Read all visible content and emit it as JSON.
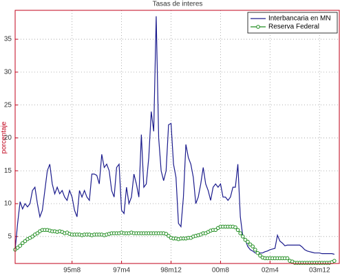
{
  "chart_data": {
    "type": "line",
    "title": "Tasas de interes",
    "y_label": "porcentaje",
    "x": [
      404,
      405,
      406,
      407,
      408,
      409,
      410,
      411,
      412,
      413,
      414,
      415,
      416,
      417,
      418,
      419,
      420,
      421,
      422,
      423,
      424,
      425,
      426,
      427,
      428,
      429,
      430,
      431,
      432,
      433,
      434,
      435,
      436,
      437,
      438,
      439,
      440,
      441,
      442,
      443,
      444,
      445,
      446,
      447,
      448,
      449,
      450,
      451,
      452,
      453,
      454,
      455,
      456,
      457,
      458,
      459,
      460,
      461,
      462,
      463,
      464,
      465,
      466,
      467,
      468,
      469,
      470,
      471,
      472,
      473,
      474,
      475,
      476,
      477,
      478,
      479,
      480,
      481,
      482,
      483,
      484,
      485,
      486,
      487,
      488,
      489,
      490,
      491,
      492,
      493,
      494,
      495,
      496,
      497,
      498,
      499,
      500,
      501,
      502,
      503,
      504,
      505,
      506,
      507,
      508,
      509,
      510,
      511,
      512,
      513,
      514,
      515,
      516,
      517,
      518,
      519,
      520,
      521,
      522,
      523,
      524,
      525,
      526,
      527,
      528,
      529,
      530,
      531,
      532,
      533
    ],
    "series": [
      {
        "name": "Interbancaria en MN",
        "color": "#1a1a8c",
        "marker": false,
        "values": [
          3,
          7,
          10.3,
          9.2,
          10,
          9.5,
          10,
          12,
          12.5,
          10,
          8,
          9,
          12,
          15,
          16,
          13,
          11.5,
          12.5,
          11.5,
          12,
          11,
          10.5,
          12,
          11,
          9,
          8,
          12,
          11,
          12,
          11,
          10.5,
          14.5,
          14.5,
          14.3,
          13,
          17.5,
          15.5,
          16,
          15,
          12,
          11,
          15.5,
          16,
          9,
          8.5,
          12.5,
          10,
          11,
          14.5,
          13,
          11,
          20.5,
          12.5,
          13,
          17,
          24,
          21,
          38.5,
          20,
          15,
          13.5,
          15,
          22,
          22.2,
          16,
          14,
          7,
          6.5,
          11,
          19,
          17,
          16,
          14,
          10,
          11,
          13,
          15.5,
          13,
          12,
          10.5,
          12.5,
          13,
          12.5,
          13,
          11,
          11,
          10.5,
          11,
          12.5,
          12.5,
          16,
          8,
          5,
          4.5,
          3.5,
          3,
          2.8,
          2.5,
          2.5,
          2.5,
          2.5,
          2.7,
          2.8,
          3.0,
          3.1,
          3.2,
          5.2,
          4.3,
          4,
          3.6,
          3.7,
          3.7,
          3.7,
          3.7,
          3.7,
          3.7,
          3.4,
          3,
          2.8,
          2.7,
          2.6,
          2.5,
          2.5,
          2.5,
          2.4,
          2.4,
          2.4,
          2.4,
          2.4,
          2.3
        ]
      },
      {
        "name": "Reserva Federal",
        "color": "#1e8c1e",
        "marker": true,
        "values": [
          3,
          3.3,
          3.6,
          4,
          4.3,
          4.6,
          4.8,
          5.0,
          5.3,
          5.5,
          5.8,
          6.0,
          6.0,
          6.0,
          5.9,
          5.8,
          5.8,
          5.7,
          5.8,
          5.7,
          5.5,
          5.6,
          5.4,
          5.3,
          5.3,
          5.3,
          5.3,
          5.2,
          5.3,
          5.3,
          5.3,
          5.2,
          5.3,
          5.3,
          5.3,
          5.3,
          5.2,
          5.3,
          5.4,
          5.5,
          5.5,
          5.5,
          5.5,
          5.6,
          5.5,
          5.5,
          5.5,
          5.6,
          5.5,
          5.5,
          5.5,
          5.5,
          5.5,
          5.5,
          5.5,
          5.5,
          5.5,
          5.5,
          5.5,
          5.5,
          5.5,
          5.4,
          5.1,
          4.8,
          4.7,
          4.7,
          4.6,
          4.7,
          4.7,
          4.7,
          4.8,
          4.8,
          5.0,
          5.1,
          5.2,
          5.3,
          5.5,
          5.5,
          5.7,
          5.9,
          6.0,
          6.0,
          6.3,
          6.5,
          6.5,
          6.5,
          6.5,
          6.5,
          6.5,
          6.4,
          6.0,
          5.5,
          5.0,
          4.5,
          4.2,
          3.8,
          3.5,
          3.0,
          2.5,
          2.1,
          1.8,
          1.7,
          1.7,
          1.7,
          1.7,
          1.7,
          1.7,
          1.7,
          1.7,
          1.7,
          1.7,
          1.3,
          1.2,
          1.0,
          1.0,
          1.0,
          1.0,
          1.0,
          1.0,
          1.0,
          1.0,
          1.0,
          1.0,
          1.0,
          1.0,
          1.0,
          1.0,
          1.0,
          1.1,
          1.3
        ]
      }
    ],
    "xlim": [
      404,
      535
    ],
    "ylim": [
      0.9,
      39.4
    ],
    "xticks": [
      {
        "value": 427,
        "label": "95m8"
      },
      {
        "value": 447,
        "label": "97m4"
      },
      {
        "value": 467,
        "label": "98m12"
      },
      {
        "value": 487,
        "label": "00m8"
      },
      {
        "value": 507,
        "label": "02m4"
      },
      {
        "value": 527,
        "label": "03m12"
      }
    ],
    "yticks": [
      5,
      10,
      15,
      20,
      25,
      30,
      35
    ],
    "grid": true,
    "axis_color": "#c0001a",
    "legend": "top-right"
  }
}
